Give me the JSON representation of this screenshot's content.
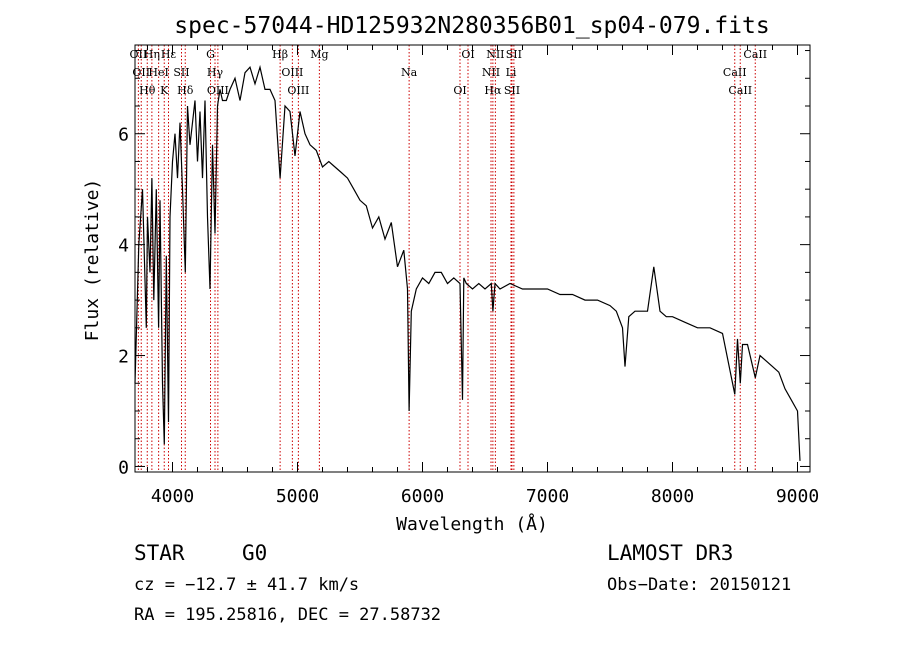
{
  "chart_data": {
    "type": "line",
    "title": "spec-57044-HD125932N280356B01_sp04-079.fits",
    "xlabel": "Wavelength (Å)",
    "ylabel": "Flux (relative)",
    "xlim": [
      3700,
      9100
    ],
    "ylim": [
      -0.1,
      7.6
    ],
    "xticks": [
      4000,
      5000,
      6000,
      7000,
      8000,
      9000
    ],
    "yticks": [
      0,
      2,
      4,
      6
    ],
    "grid": false,
    "series": [
      {
        "x": [
          3700,
          3730,
          3760,
          3790,
          3800,
          3820,
          3835,
          3850,
          3870,
          3889,
          3900,
          3920,
          3934,
          3950,
          3968,
          3980,
          4000,
          4020,
          4040,
          4060,
          4080,
          4102,
          4120,
          4140,
          4160,
          4180,
          4200,
          4220,
          4240,
          4260,
          4280,
          4300,
          4320,
          4340,
          4360,
          4380,
          4400,
          4430,
          4460,
          4500,
          4540,
          4580,
          4620,
          4660,
          4700,
          4740,
          4780,
          4820,
          4861,
          4900,
          4940,
          4980,
          5020,
          5060,
          5100,
          5150,
          5200,
          5250,
          5300,
          5350,
          5400,
          5450,
          5500,
          5550,
          5600,
          5650,
          5700,
          5750,
          5800,
          5850,
          5880,
          5893,
          5910,
          5950,
          6000,
          6050,
          6100,
          6150,
          6200,
          6250,
          6300,
          6320,
          6330,
          6350,
          6400,
          6450,
          6500,
          6550,
          6563,
          6580,
          6620,
          6700,
          6800,
          6900,
          7000,
          7100,
          7200,
          7300,
          7400,
          7500,
          7550,
          7600,
          7620,
          7650,
          7700,
          7800,
          7850,
          7900,
          7950,
          8000,
          8100,
          8200,
          8300,
          8400,
          8498,
          8520,
          8542,
          8560,
          8600,
          8662,
          8700,
          8750,
          8800,
          8850,
          8900,
          8950,
          9000,
          9020
        ],
        "y": [
          1.5,
          4.0,
          5.0,
          2.5,
          4.5,
          3.5,
          5.2,
          3.0,
          5.0,
          2.5,
          4.8,
          1.5,
          0.4,
          3.8,
          0.8,
          4.5,
          5.5,
          6.0,
          5.2,
          6.2,
          5.0,
          3.5,
          6.5,
          5.8,
          6.2,
          6.6,
          5.5,
          6.4,
          5.2,
          6.6,
          4.5,
          3.2,
          5.8,
          4.2,
          6.5,
          6.8,
          6.6,
          6.6,
          6.8,
          7.0,
          6.6,
          7.1,
          7.2,
          6.9,
          7.2,
          6.8,
          6.8,
          6.6,
          5.2,
          6.5,
          6.4,
          5.6,
          6.4,
          6.0,
          5.8,
          5.7,
          5.4,
          5.5,
          5.4,
          5.3,
          5.2,
          5.0,
          4.8,
          4.7,
          4.3,
          4.5,
          4.1,
          4.4,
          3.6,
          3.9,
          3.2,
          1.0,
          2.8,
          3.2,
          3.4,
          3.3,
          3.5,
          3.5,
          3.3,
          3.4,
          3.3,
          1.2,
          3.4,
          3.3,
          3.2,
          3.3,
          3.2,
          3.3,
          2.8,
          3.3,
          3.2,
          3.3,
          3.2,
          3.2,
          3.2,
          3.1,
          3.1,
          3.0,
          3.0,
          2.9,
          2.8,
          2.5,
          1.8,
          2.7,
          2.8,
          2.8,
          3.6,
          2.8,
          2.7,
          2.7,
          2.6,
          2.5,
          2.5,
          2.4,
          1.3,
          2.3,
          1.5,
          2.2,
          2.2,
          1.6,
          2.0,
          1.9,
          1.8,
          1.7,
          1.4,
          1.2,
          1.0,
          0.1
        ]
      }
    ],
    "spectral_lines": [
      {
        "wave": 3727,
        "labels": [
          "OII"
        ]
      },
      {
        "wave": 3750,
        "labels": [
          "OII"
        ]
      },
      {
        "wave": 3798,
        "labels": [
          "Hθ"
        ]
      },
      {
        "wave": 3835,
        "labels": [
          "Hη"
        ]
      },
      {
        "wave": 3889,
        "labels": [
          "HeI"
        ]
      },
      {
        "wave": 3934,
        "labels": [
          "K"
        ]
      },
      {
        "wave": 3968,
        "labels": [
          "Hε"
        ]
      },
      {
        "wave": 4072,
        "labels": [
          "SII"
        ]
      },
      {
        "wave": 4102,
        "labels": [
          "Hδ"
        ]
      },
      {
        "wave": 4304,
        "labels": [
          "G"
        ]
      },
      {
        "wave": 4340,
        "labels": [
          "Hγ"
        ]
      },
      {
        "wave": 4363,
        "labels": [
          "OIII"
        ]
      },
      {
        "wave": 4861,
        "labels": [
          "Hβ"
        ]
      },
      {
        "wave": 4959,
        "labels": [
          "OIII"
        ]
      },
      {
        "wave": 5007,
        "labels": [
          "OIII"
        ]
      },
      {
        "wave": 5175,
        "labels": [
          "Mg"
        ]
      },
      {
        "wave": 5893,
        "labels": [
          "Na"
        ]
      },
      {
        "wave": 6300,
        "labels": [
          "OI"
        ]
      },
      {
        "wave": 6364,
        "labels": [
          "OI"
        ]
      },
      {
        "wave": 6548,
        "labels": [
          "NII"
        ]
      },
      {
        "wave": 6563,
        "labels": [
          "Hα"
        ]
      },
      {
        "wave": 6583,
        "labels": [
          "NII"
        ]
      },
      {
        "wave": 6708,
        "labels": [
          "Li"
        ]
      },
      {
        "wave": 6716,
        "labels": [
          "SII"
        ]
      },
      {
        "wave": 6731,
        "labels": [
          "SII"
        ]
      },
      {
        "wave": 8498,
        "labels": [
          "CaII"
        ]
      },
      {
        "wave": 8542,
        "labels": [
          "CaII"
        ]
      },
      {
        "wave": 8662,
        "labels": [
          "CaII"
        ]
      }
    ],
    "line_marker_color": "#cc0000",
    "spectrum_color": "#000000"
  },
  "info": {
    "object_class": "STAR",
    "subclass": "G0",
    "survey": "LAMOST DR3",
    "redshift": "cz = −12.7 ± 41.7 km/s",
    "obs_date": "Obs−Date: 20150121",
    "coords": "RA = 195.25816, DEC =  27.58732"
  }
}
